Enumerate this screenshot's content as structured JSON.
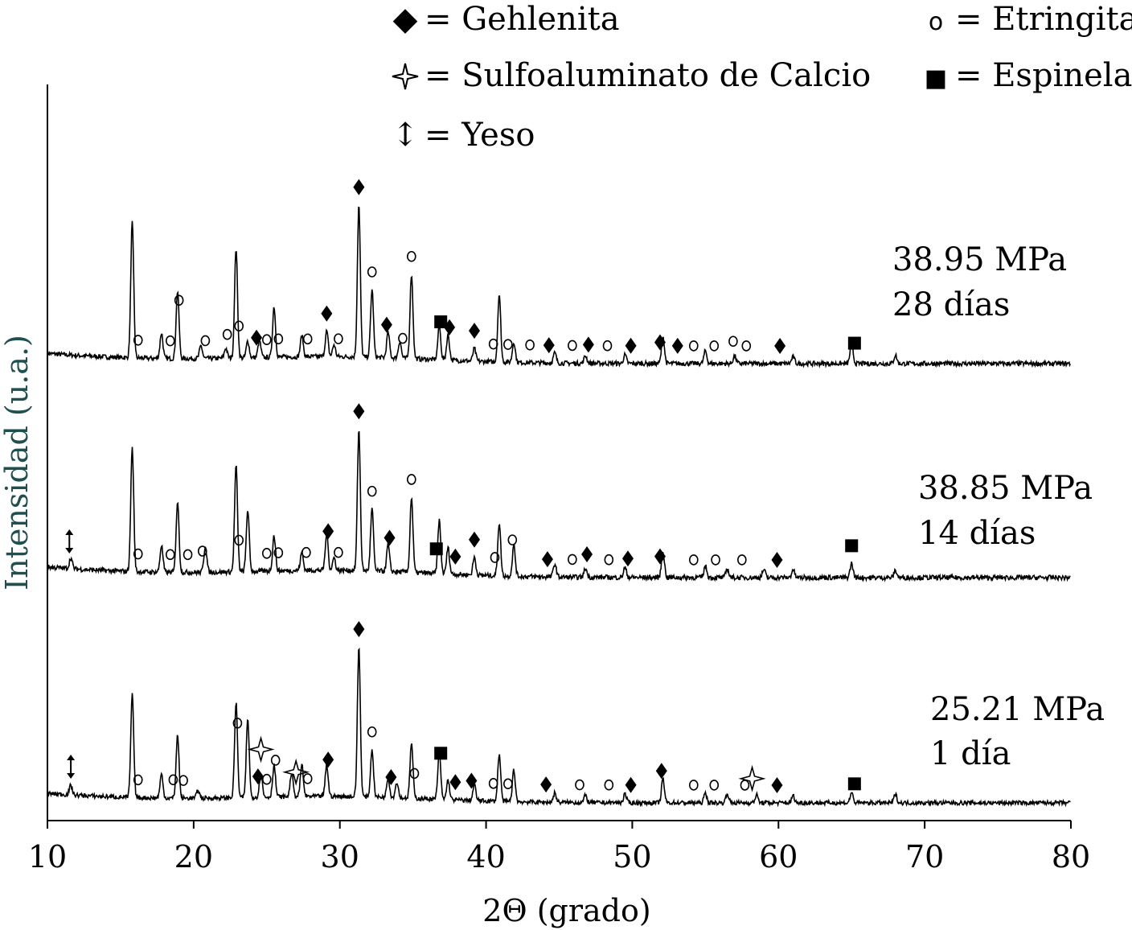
{
  "chart_data": {
    "type": "line",
    "title": "",
    "xlabel": "2Θ (grado)",
    "ylabel": "Intensidad (u.a.)",
    "xlim": [
      10,
      80
    ],
    "xticks": [
      10,
      20,
      30,
      40,
      50,
      60,
      70,
      80
    ],
    "legend": [
      {
        "symbol": "diamond",
        "label": "= Gehlenita"
      },
      {
        "symbol": "sparkle",
        "label": "= Sulfoaluminato de Calcio"
      },
      {
        "symbol": "updown-arrow",
        "label": "= Yeso"
      },
      {
        "symbol": "circle",
        "label": "= Etringita"
      },
      {
        "symbol": "square",
        "label": "= Espinela"
      }
    ],
    "series": [
      {
        "name": "28 días",
        "strength": "38.95 MPa",
        "age": "28 días",
        "peaks": [
          [
            15.8,
            16
          ],
          [
            17.8,
            3
          ],
          [
            18.9,
            8
          ],
          [
            20.5,
            1.5
          ],
          [
            22.2,
            1.2
          ],
          [
            22.9,
            13
          ],
          [
            23.7,
            2
          ],
          [
            24.5,
            2
          ],
          [
            25.5,
            6
          ],
          [
            27.4,
            2.5
          ],
          [
            29.1,
            3
          ],
          [
            29.6,
            1.4
          ],
          [
            31.3,
            18
          ],
          [
            32.2,
            8
          ],
          [
            33.3,
            3
          ],
          [
            34.1,
            2
          ],
          [
            34.9,
            10
          ],
          [
            36.8,
            4
          ],
          [
            37.4,
            3
          ],
          [
            39.2,
            1.5
          ],
          [
            40.9,
            8
          ],
          [
            41.9,
            2.4
          ],
          [
            44.7,
            1.2
          ],
          [
            46.8,
            0.9
          ],
          [
            49.5,
            1
          ],
          [
            52.1,
            3.2
          ],
          [
            55.0,
            1.5
          ],
          [
            57.0,
            0.9
          ],
          [
            61.0,
            0.8
          ],
          [
            65.0,
            2.5
          ],
          [
            68.0,
            1
          ]
        ],
        "markers": [
          [
            "circle",
            16.2
          ],
          [
            "circle",
            19.0
          ],
          [
            "circle",
            23.1
          ],
          [
            "circle",
            18.4
          ],
          [
            "circle",
            20.8
          ],
          [
            "circle",
            22.3
          ],
          [
            "diamond",
            24.3
          ],
          [
            "circle",
            25.0
          ],
          [
            "circle",
            25.8
          ],
          [
            "circle",
            27.8
          ],
          [
            "diamond",
            29.1
          ],
          [
            "circle",
            29.9
          ],
          [
            "diamond",
            31.3
          ],
          [
            "circle",
            32.2
          ],
          [
            "diamond",
            33.2
          ],
          [
            "circle",
            34.3
          ],
          [
            "circle",
            34.9
          ],
          [
            "square",
            36.9
          ],
          [
            "diamond",
            37.5
          ],
          [
            "diamond",
            39.2
          ],
          [
            "circle",
            40.5
          ],
          [
            "circle",
            41.5
          ],
          [
            "circle",
            43.0
          ],
          [
            "diamond",
            44.3
          ],
          [
            "circle",
            45.9
          ],
          [
            "diamond",
            47.0
          ],
          [
            "circle",
            48.3
          ],
          [
            "diamond",
            49.9
          ],
          [
            "diamond",
            51.9
          ],
          [
            "diamond",
            53.1
          ],
          [
            "circle",
            54.2
          ],
          [
            "circle",
            55.6
          ],
          [
            "circle",
            56.9
          ],
          [
            "circle",
            57.8
          ],
          [
            "diamond",
            60.1
          ],
          [
            "square",
            65.2
          ]
        ]
      },
      {
        "name": "14 días",
        "strength": "38.85 MPa",
        "age": "14 días",
        "peaks": [
          [
            11.6,
            1.2
          ],
          [
            15.8,
            14
          ],
          [
            17.8,
            3
          ],
          [
            18.9,
            8
          ],
          [
            20.8,
            3
          ],
          [
            22.9,
            12
          ],
          [
            23.7,
            7
          ],
          [
            25.5,
            4
          ],
          [
            27.4,
            2
          ],
          [
            29.1,
            4
          ],
          [
            29.6,
            1.4
          ],
          [
            31.3,
            16
          ],
          [
            32.2,
            7
          ],
          [
            33.3,
            3
          ],
          [
            34.9,
            8.5
          ],
          [
            36.8,
            6
          ],
          [
            37.4,
            3
          ],
          [
            39.2,
            2
          ],
          [
            40.9,
            6
          ],
          [
            41.9,
            3.5
          ],
          [
            44.7,
            1.5
          ],
          [
            46.8,
            1
          ],
          [
            49.5,
            1.1
          ],
          [
            52.1,
            3
          ],
          [
            55.0,
            1.3
          ],
          [
            56.5,
            1
          ],
          [
            59.0,
            0.9
          ],
          [
            61.0,
            0.9
          ],
          [
            65.0,
            1.6
          ],
          [
            68.0,
            0.8
          ]
        ],
        "markers": [
          [
            "updown-arrow",
            11.5
          ],
          [
            "circle",
            16.2
          ],
          [
            "circle",
            19.6
          ],
          [
            "circle",
            23.1
          ],
          [
            "circle",
            18.4
          ],
          [
            "circle",
            20.6
          ],
          [
            "circle",
            25.8
          ],
          [
            "circle",
            25.0
          ],
          [
            "circle",
            27.7
          ],
          [
            "diamond",
            29.2
          ],
          [
            "circle",
            29.9
          ],
          [
            "diamond",
            31.3
          ],
          [
            "circle",
            32.2
          ],
          [
            "diamond",
            33.4
          ],
          [
            "circle",
            34.9
          ],
          [
            "square",
            36.6
          ],
          [
            "diamond",
            37.9
          ],
          [
            "diamond",
            39.2
          ],
          [
            "circle",
            40.6
          ],
          [
            "circle",
            41.8
          ],
          [
            "diamond",
            44.2
          ],
          [
            "circle",
            45.9
          ],
          [
            "diamond",
            46.9
          ],
          [
            "circle",
            48.4
          ],
          [
            "diamond",
            49.7
          ],
          [
            "diamond",
            51.9
          ],
          [
            "circle",
            54.2
          ],
          [
            "circle",
            55.7
          ],
          [
            "circle",
            57.5
          ],
          [
            "diamond",
            59.9
          ],
          [
            "square",
            65.0
          ]
        ]
      },
      {
        "name": "1 día",
        "strength": "25.21 MPa",
        "age": "1 día",
        "peaks": [
          [
            11.6,
            1.2
          ],
          [
            15.8,
            13
          ],
          [
            17.8,
            3
          ],
          [
            18.9,
            8
          ],
          [
            20.3,
            1
          ],
          [
            22.9,
            12
          ],
          [
            23.7,
            10
          ],
          [
            24.6,
            3
          ],
          [
            25.5,
            4
          ],
          [
            26.7,
            3
          ],
          [
            27.4,
            4
          ],
          [
            29.1,
            4
          ],
          [
            31.3,
            19
          ],
          [
            32.2,
            6
          ],
          [
            33.3,
            2.5
          ],
          [
            33.9,
            2
          ],
          [
            34.9,
            7
          ],
          [
            36.8,
            6
          ],
          [
            37.4,
            2.5
          ],
          [
            39.2,
            2
          ],
          [
            40.9,
            6
          ],
          [
            41.9,
            4
          ],
          [
            44.7,
            1.2
          ],
          [
            46.8,
            0.9
          ],
          [
            49.5,
            1.1
          ],
          [
            52.1,
            3
          ],
          [
            55.0,
            1.2
          ],
          [
            56.5,
            1.2
          ],
          [
            58.5,
            1
          ],
          [
            61.0,
            0.9
          ],
          [
            65.0,
            1.3
          ],
          [
            68.0,
            1.1
          ]
        ],
        "markers": [
          [
            "updown-arrow",
            11.6
          ],
          [
            "circle",
            16.2
          ],
          [
            "circle",
            19.3
          ],
          [
            "circle",
            23.0
          ],
          [
            "circle",
            18.6
          ],
          [
            "sparkle",
            24.6
          ],
          [
            "diamond",
            24.4
          ],
          [
            "circle",
            25.0
          ],
          [
            "circle",
            25.6
          ],
          [
            "sparkle",
            27.0
          ],
          [
            "circle",
            27.8
          ],
          [
            "diamond",
            29.2
          ],
          [
            "diamond",
            31.3
          ],
          [
            "circle",
            32.2
          ],
          [
            "diamond",
            33.5
          ],
          [
            "circle",
            35.1
          ],
          [
            "square",
            36.9
          ],
          [
            "diamond",
            37.9
          ],
          [
            "diamond",
            39.0
          ],
          [
            "circle",
            40.5
          ],
          [
            "circle",
            41.5
          ],
          [
            "diamond",
            44.1
          ],
          [
            "circle",
            46.4
          ],
          [
            "circle",
            48.4
          ],
          [
            "diamond",
            49.9
          ],
          [
            "diamond",
            52.0
          ],
          [
            "circle",
            54.2
          ],
          [
            "circle",
            55.6
          ],
          [
            "sparkle",
            58.2
          ],
          [
            "circle",
            57.7
          ],
          [
            "diamond",
            59.9
          ],
          [
            "square",
            65.2
          ]
        ]
      }
    ]
  }
}
